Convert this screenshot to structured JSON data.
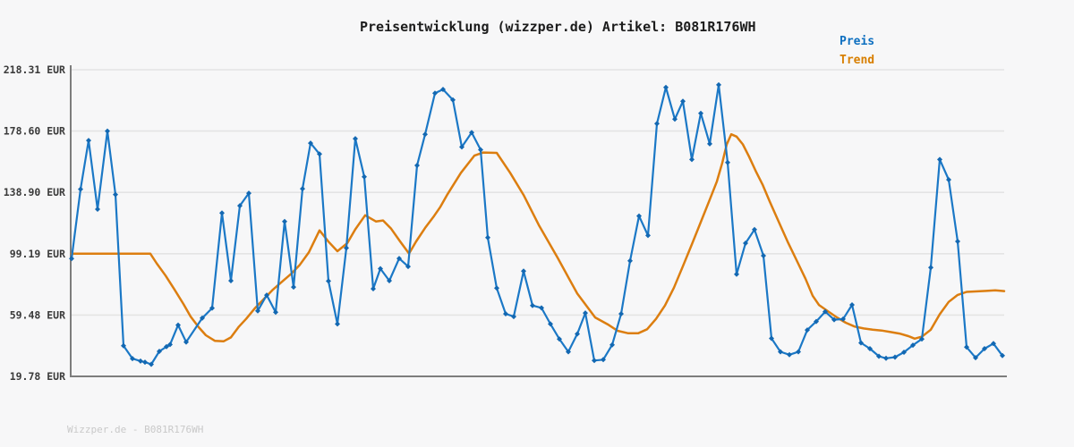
{
  "title": "Preisentwicklung (wizzper.de) Artikel: B081R176WH",
  "legend": {
    "preis": "Preis",
    "trend": "Trend"
  },
  "footer": "Wizzper.de - B081R176WH",
  "colors": {
    "background": "#f7f7f8",
    "title_text": "#1c1c1c",
    "tick_text": "#3a3a3a",
    "grid": "#e4e4e4",
    "axis": "#7d7d7d",
    "price": "#1b78c6",
    "price_marker": "#1368b2",
    "trend": "#dc7e10",
    "legend_price_text": "#0d6fc0",
    "legend_trend_text": "#d87f00",
    "watermark": "#c9c9c9"
  },
  "chart_data": {
    "type": "line",
    "title": "Preisentwicklung (wizzper.de) Artikel: B081R176WH",
    "currency": "EUR",
    "ylabel": "EUR",
    "ylim": [
      19.78,
      218.31
    ],
    "yticks": [
      "218.31 EUR",
      "178.60 EUR",
      "138.90 EUR",
      "99.19 EUR",
      "59.48 EUR",
      "19.78 EUR"
    ],
    "ytick_values": [
      218.31,
      178.6,
      138.9,
      99.19,
      59.48,
      19.78
    ],
    "grid": true,
    "legend_position": "top-right",
    "series": [
      {
        "name": "Trend",
        "color": "#dc7e10",
        "marker": "none",
        "points": [
          [
            0,
            99.19
          ],
          [
            88,
            99.19
          ],
          [
            95,
            93
          ],
          [
            105,
            85
          ],
          [
            115,
            76
          ],
          [
            125,
            66.6
          ],
          [
            133,
            58.5
          ],
          [
            142,
            51.6
          ],
          [
            150,
            46.4
          ],
          [
            160,
            42.8
          ],
          [
            170,
            42.5
          ],
          [
            178,
            45
          ],
          [
            187,
            52
          ],
          [
            195,
            57
          ],
          [
            205,
            64
          ],
          [
            215,
            70
          ],
          [
            225,
            76
          ],
          [
            235,
            81
          ],
          [
            245,
            86
          ],
          [
            255,
            92
          ],
          [
            265,
            100
          ],
          [
            277,
            114.3
          ],
          [
            287,
            107
          ],
          [
            297,
            100.8
          ],
          [
            308,
            106
          ],
          [
            317,
            115
          ],
          [
            328,
            124.1
          ],
          [
            340,
            120.1
          ],
          [
            348,
            120.7
          ],
          [
            357,
            115.4
          ],
          [
            367,
            107.2
          ],
          [
            377,
            99.3
          ],
          [
            385,
            107.2
          ],
          [
            395,
            115.9
          ],
          [
            405,
            123.6
          ],
          [
            412,
            129.5
          ],
          [
            420,
            137.7
          ],
          [
            435,
            151.6
          ],
          [
            450,
            162.7
          ],
          [
            460,
            164.7
          ],
          [
            475,
            164.5
          ],
          [
            490,
            151.6
          ],
          [
            505,
            137.2
          ],
          [
            522,
            117.8
          ],
          [
            543,
            96.6
          ],
          [
            565,
            73.4
          ],
          [
            585,
            57.9
          ],
          [
            600,
            53.1
          ],
          [
            610,
            49.3
          ],
          [
            622,
            47.7
          ],
          [
            633,
            47.7
          ],
          [
            643,
            50.3
          ],
          [
            653,
            57
          ],
          [
            663,
            65.7
          ],
          [
            673,
            77.2
          ],
          [
            683,
            91.1
          ],
          [
            693,
            105.2
          ],
          [
            703,
            119.7
          ],
          [
            713,
            134.2
          ],
          [
            721,
            146
          ],
          [
            727,
            158
          ],
          [
            732,
            170
          ],
          [
            737,
            176.5
          ],
          [
            743,
            175
          ],
          [
            750,
            170
          ],
          [
            757,
            162
          ],
          [
            765,
            152
          ],
          [
            772,
            144
          ],
          [
            780,
            133
          ],
          [
            790,
            120
          ],
          [
            800,
            107
          ],
          [
            810,
            95
          ],
          [
            820,
            83
          ],
          [
            828,
            72
          ],
          [
            835,
            66
          ],
          [
            845,
            62
          ],
          [
            855,
            58
          ],
          [
            865,
            54.5
          ],
          [
            875,
            52
          ],
          [
            885,
            50.8
          ],
          [
            895,
            50
          ],
          [
            905,
            49.5
          ],
          [
            915,
            48.5
          ],
          [
            925,
            47.5
          ],
          [
            935,
            45.8
          ],
          [
            942,
            44.2
          ],
          [
            950,
            45.5
          ],
          [
            960,
            50
          ],
          [
            970,
            60
          ],
          [
            980,
            68
          ],
          [
            990,
            72.5
          ],
          [
            1000,
            74.5
          ],
          [
            1012,
            74.8
          ],
          [
            1022,
            75.1
          ],
          [
            1032,
            75.5
          ],
          [
            1042,
            75
          ]
        ]
      },
      {
        "name": "Preis",
        "color": "#1b78c6",
        "marker": "diamond",
        "points": [
          [
            0,
            96
          ],
          [
            10,
            141
          ],
          [
            19,
            172.5
          ],
          [
            29,
            128
          ],
          [
            40,
            178.6
          ],
          [
            49,
            137.5
          ],
          [
            58,
            39.6
          ],
          [
            68,
            31.3
          ],
          [
            77,
            29.7
          ],
          [
            82,
            29
          ],
          [
            89,
            27.6
          ],
          [
            98,
            36
          ],
          [
            106,
            39
          ],
          [
            110,
            40.4
          ],
          [
            119,
            53
          ],
          [
            128,
            42
          ],
          [
            146,
            57.5
          ],
          [
            157,
            64
          ],
          [
            168,
            125.5
          ],
          [
            178,
            81.7
          ],
          [
            188,
            130.3
          ],
          [
            198,
            138.4
          ],
          [
            208,
            62.2
          ],
          [
            218,
            72.4
          ],
          [
            228,
            61.3
          ],
          [
            238,
            120.1
          ],
          [
            248,
            77.6
          ],
          [
            258,
            141.3
          ],
          [
            267,
            170.8
          ],
          [
            277,
            163.7
          ],
          [
            287,
            81.5
          ],
          [
            297,
            53.7
          ],
          [
            307,
            102.9
          ],
          [
            317,
            173.7
          ],
          [
            327,
            149
          ],
          [
            337,
            76.5
          ],
          [
            345,
            89.5
          ],
          [
            355,
            81.7
          ],
          [
            366,
            96.1
          ],
          [
            376,
            90.9
          ],
          [
            386,
            156.4
          ],
          [
            395,
            176.5
          ],
          [
            406,
            203.1
          ],
          [
            415,
            205.6
          ],
          [
            426,
            198.8
          ],
          [
            436,
            168.3
          ],
          [
            447,
            177.7
          ],
          [
            457,
            166.5
          ],
          [
            465,
            109.6
          ],
          [
            475,
            76.9
          ],
          [
            485,
            60.3
          ],
          [
            494,
            58.5
          ],
          [
            505,
            87.9
          ],
          [
            515,
            65.7
          ],
          [
            525,
            64.1
          ],
          [
            535,
            53.7
          ],
          [
            545,
            44
          ],
          [
            555,
            35.7
          ],
          [
            565,
            47.3
          ],
          [
            574,
            60.8
          ],
          [
            584,
            30
          ],
          [
            594,
            30.6
          ],
          [
            604,
            40.2
          ],
          [
            614,
            60.3
          ],
          [
            624,
            94.6
          ],
          [
            634,
            123.6
          ],
          [
            644,
            111
          ],
          [
            654,
            183.4
          ],
          [
            664,
            206.9
          ],
          [
            674,
            186.3
          ],
          [
            683,
            197.9
          ],
          [
            693,
            160.2
          ],
          [
            703,
            190.1
          ],
          [
            713,
            170.3
          ],
          [
            723,
            208.5
          ],
          [
            733,
            158.3
          ],
          [
            743,
            85.9
          ],
          [
            753,
            106
          ],
          [
            763,
            114.8
          ],
          [
            773,
            97.9
          ],
          [
            782,
            44.4
          ],
          [
            792,
            35.7
          ],
          [
            802,
            33.8
          ],
          [
            812,
            35.7
          ],
          [
            822,
            49.8
          ],
          [
            832,
            55.3
          ],
          [
            842,
            61.7
          ],
          [
            852,
            56.5
          ],
          [
            862,
            56.9
          ],
          [
            872,
            66.1
          ],
          [
            882,
            41.5
          ],
          [
            892,
            37.7
          ],
          [
            902,
            32.8
          ],
          [
            910,
            31.5
          ],
          [
            920,
            32.2
          ],
          [
            930,
            35.4
          ],
          [
            940,
            40
          ],
          [
            950,
            44
          ],
          [
            960,
            90.3
          ],
          [
            970,
            160.2
          ],
          [
            980,
            147.1
          ],
          [
            990,
            107.2
          ],
          [
            1000,
            38.7
          ],
          [
            1010,
            31.9
          ],
          [
            1020,
            37.7
          ],
          [
            1030,
            41
          ],
          [
            1040,
            33.2
          ]
        ]
      }
    ]
  }
}
